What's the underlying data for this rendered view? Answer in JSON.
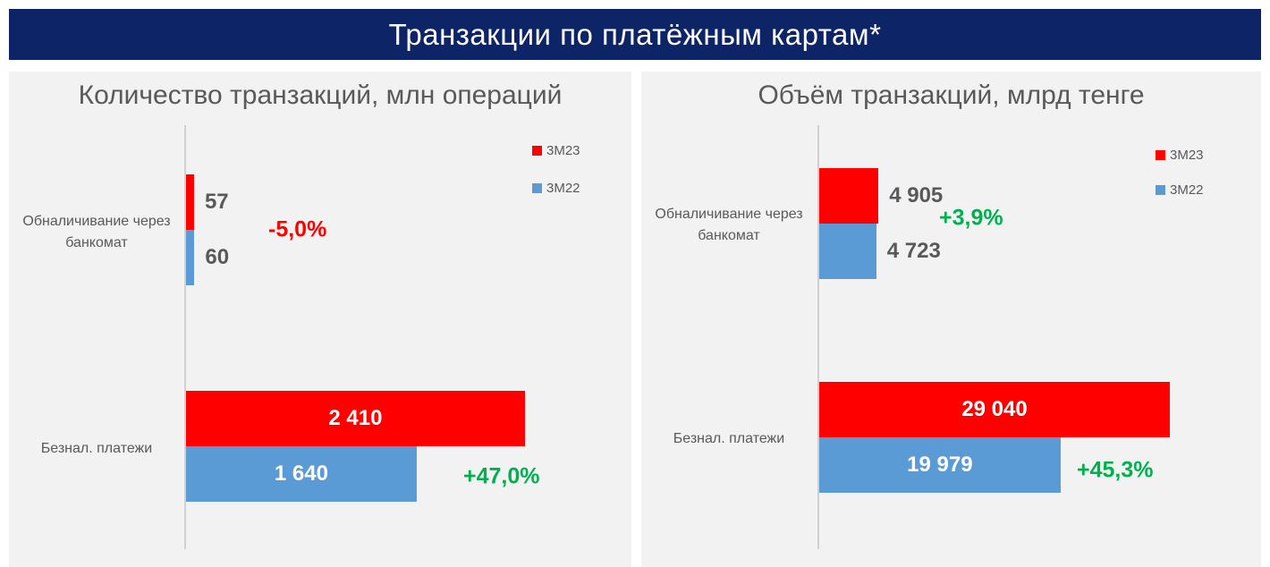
{
  "header": {
    "title": "Транзакции по платёжным картам*"
  },
  "colors": {
    "banner": "#0d2466",
    "series_3m23": "#ff0000",
    "series_3m22": "#5b9bd5",
    "negative": "#ff0000",
    "positive": "#00b050"
  },
  "chart_data": [
    {
      "type": "bar",
      "orientation": "horizontal",
      "title": "Количество транзакций, млн операций",
      "categories": [
        "Обналичивание через банкомат",
        "Безнал. платежи"
      ],
      "series": [
        {
          "name": "3М23",
          "values": [
            57,
            2410
          ],
          "labels": [
            "57",
            "2 410"
          ]
        },
        {
          "name": "3М22",
          "values": [
            60,
            1640
          ],
          "labels": [
            "60",
            "1 640"
          ]
        }
      ],
      "changes": [
        "-5,0%",
        "+47,0%"
      ],
      "xlim": [
        0,
        2500
      ],
      "legend": "top-right",
      "grid": false
    },
    {
      "type": "bar",
      "orientation": "horizontal",
      "title": "Объём транзакций, млрд тенге",
      "categories": [
        "Обналичивание через банкомат",
        "Безнал. платежи"
      ],
      "series": [
        {
          "name": "3М23",
          "values": [
            4905,
            29040
          ],
          "labels": [
            "4 905",
            "29 040"
          ]
        },
        {
          "name": "3М22",
          "values": [
            4723,
            19979
          ],
          "labels": [
            "4 723",
            "19 979"
          ]
        }
      ],
      "changes": [
        "+3,9%",
        "+45,3%"
      ],
      "xlim": [
        0,
        40000
      ],
      "legend": "top-right",
      "grid": false
    }
  ]
}
